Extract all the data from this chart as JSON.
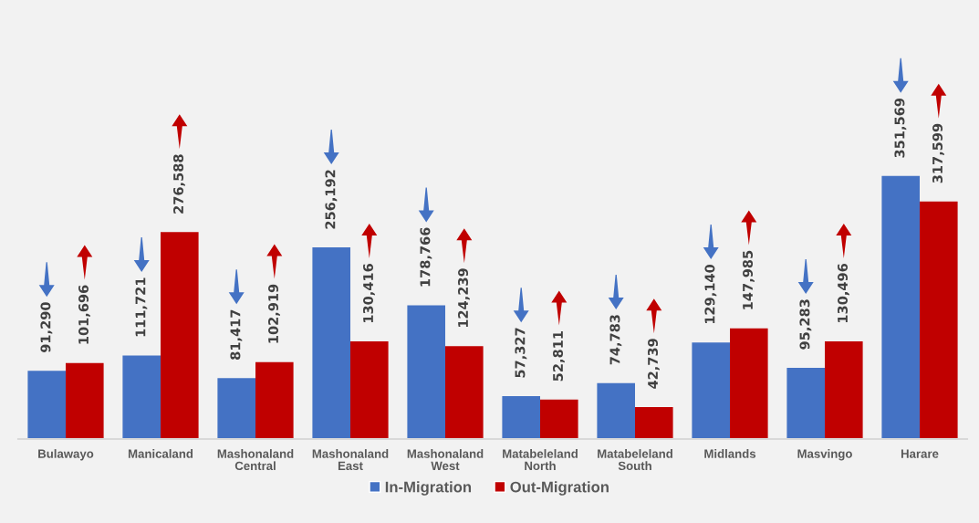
{
  "chart_data": {
    "type": "bar",
    "categories": [
      "Bulawayo",
      "Manicaland",
      "Mashonaland Central",
      "Mashonaland East",
      "Mashonaland West",
      "Matabeleland North",
      "Matabeleland South",
      "Midlands",
      "Masvingo",
      "Harare"
    ],
    "series": [
      {
        "name": "In-Migration",
        "color": "#4472c4",
        "values": [
          91290,
          111721,
          81417,
          256192,
          178766,
          57327,
          74783,
          129140,
          95283,
          351569
        ],
        "value_labels": [
          "91,290",
          "111,721",
          "81,417",
          "256,192",
          "178,766",
          "57,327",
          "74,783",
          "129,140",
          "95,283",
          "351,569"
        ]
      },
      {
        "name": "Out-Migration",
        "color": "#c00000",
        "values": [
          101696,
          276588,
          102919,
          130416,
          124239,
          52811,
          42739,
          147985,
          130496,
          317599
        ],
        "value_labels": [
          "101,696",
          "276,588",
          "102,919",
          "130,416",
          "124,239",
          "52,811",
          "42,739",
          "147,985",
          "130,496",
          "317,599"
        ]
      }
    ],
    "legend": "bottom"
  }
}
